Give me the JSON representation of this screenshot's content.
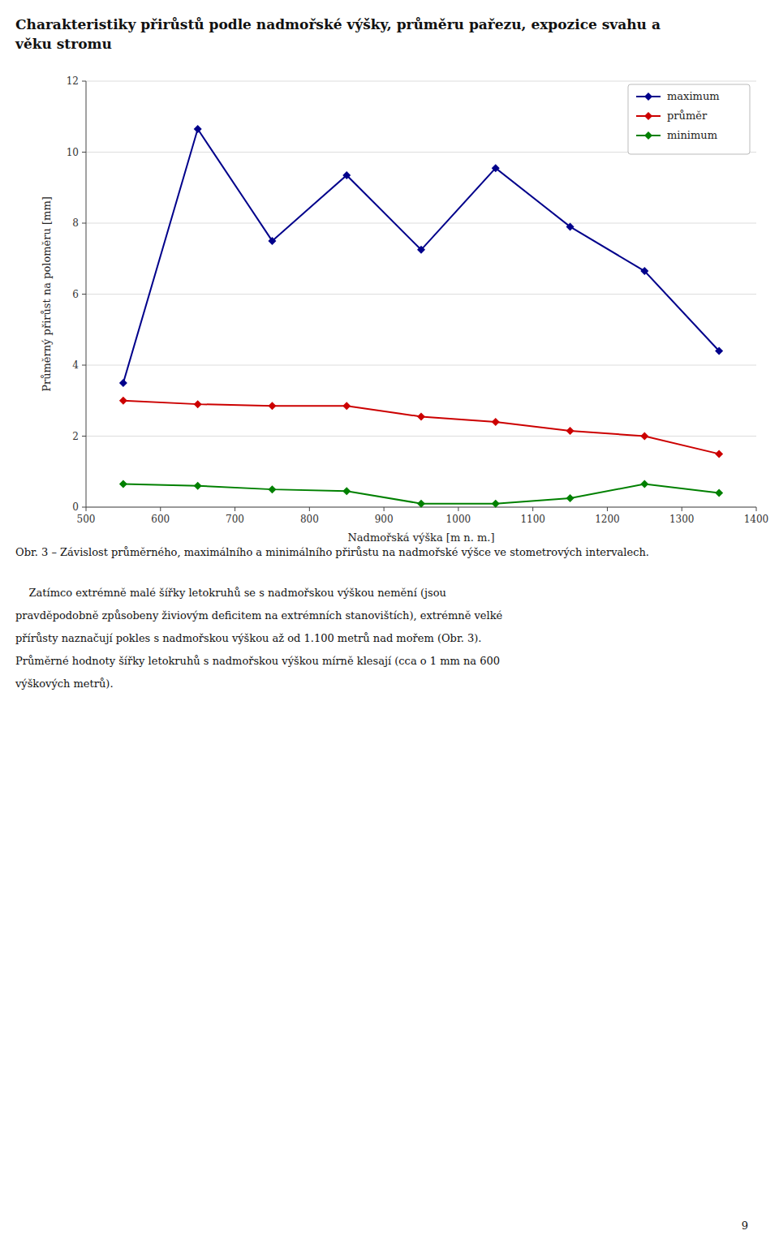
{
  "chart_data": {
    "type": "line",
    "title": "Charakteristiky přirůstů podle nadmořské výšky, průměru pařezu, expozice svahu a\nvěku stromu",
    "x_label": "Nadmořská výška [m n. m.]",
    "y_label": "Průměrný přirůst na poloměru [mm]",
    "x": [
      550,
      650,
      750,
      850,
      950,
      1050,
      1150,
      1250,
      1350
    ],
    "series": [
      {
        "name": "maximum",
        "color": "#00008B",
        "marker": "diamond",
        "values": [
          3.5,
          10.65,
          7.5,
          9.35,
          7.25,
          9.55,
          7.9,
          6.65,
          4.4
        ]
      },
      {
        "name": "průměr",
        "color": "#CC0000",
        "marker": "diamond",
        "values": [
          3.0,
          2.9,
          2.85,
          2.85,
          2.55,
          2.4,
          2.15,
          2.0,
          1.5
        ]
      },
      {
        "name": "minimum",
        "color": "#008000",
        "marker": "diamond",
        "values": [
          0.65,
          0.6,
          0.5,
          0.45,
          0.1,
          0.1,
          0.25,
          0.65,
          0.4
        ]
      }
    ],
    "xlim": [
      500,
      1400
    ],
    "ylim": [
      0,
      12
    ],
    "xticks": [
      500,
      600,
      700,
      800,
      900,
      1000,
      1100,
      1200,
      1300,
      1400
    ],
    "yticks": [
      0,
      2,
      4,
      6,
      8,
      10,
      12
    ],
    "grid": "y",
    "legend": "upper right",
    "caption": "Obr. 3 – Závislost průměrného, maximálního a minimálního přirůstu na nadmořské výšce ve stometrových intervalech.",
    "body_text": [
      "    Zatímco extrémně malé šířky letokruhů se s nadmořskou výškou nemění (jsou",
      "pravděpodobně způsobeny živiovým deficitem na extrémních stanovištích), extrémně velké",
      "přírůsty naznačují pokles s nadmořskou výškou až od 1.100 metrů nad mořem (Obr. 3).",
      "Průměrné hodnoty šířky letokruhů s nadmořskou výškou mírně klesají (cca o 1 mm na 600",
      "výškových metrů)."
    ],
    "page_number": "9"
  }
}
